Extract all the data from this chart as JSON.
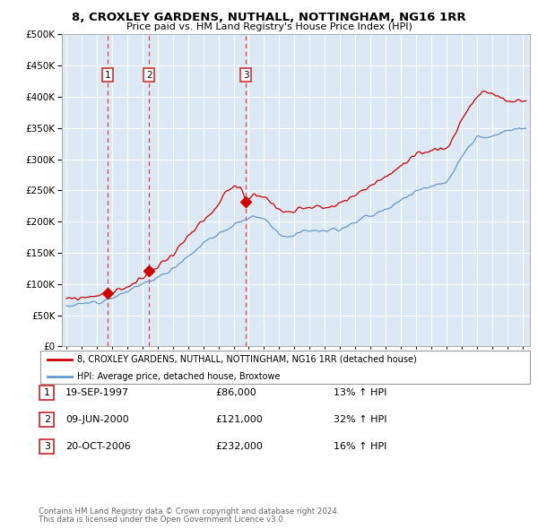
{
  "title1": "8, CROXLEY GARDENS, NUTHALL, NOTTINGHAM, NG16 1RR",
  "title2": "Price paid vs. HM Land Registry's House Price Index (HPI)",
  "ylim": [
    0,
    500000
  ],
  "background_color": "#dce9f5",
  "line_color_red": "#cc0000",
  "line_color_blue": "#6699cc",
  "sale_dates": [
    1997.72,
    2000.44,
    2006.8
  ],
  "sale_prices": [
    86000,
    121000,
    232000
  ],
  "sale_labels": [
    "1",
    "2",
    "3"
  ],
  "legend_line1": "8, CROXLEY GARDENS, NUTHALL, NOTTINGHAM, NG16 1RR (detached house)",
  "legend_line2": "HPI: Average price, detached house, Broxtowe",
  "table_rows": [
    {
      "num": "1",
      "date": "19-SEP-1997",
      "price": "£86,000",
      "hpi": "13% ↑ HPI"
    },
    {
      "num": "2",
      "date": "09-JUN-2000",
      "price": "£121,000",
      "hpi": "32% ↑ HPI"
    },
    {
      "num": "3",
      "date": "20-OCT-2006",
      "price": "£232,000",
      "hpi": "16% ↑ HPI"
    }
  ],
  "footnote1": "Contains HM Land Registry data © Crown copyright and database right 2024.",
  "footnote2": "This data is licensed under the Open Government Licence v3.0."
}
